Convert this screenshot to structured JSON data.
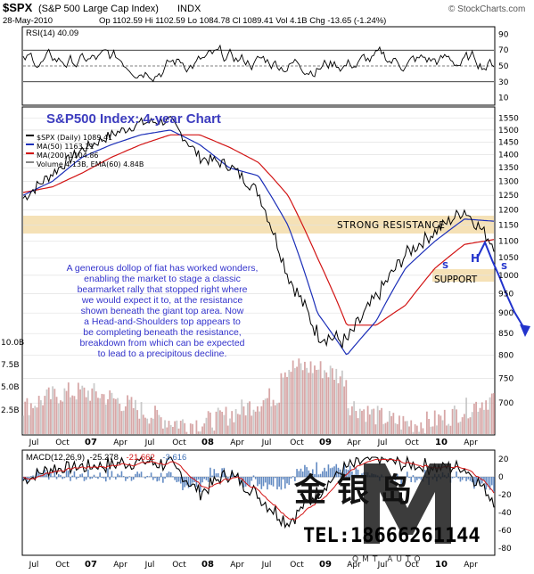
{
  "header": {
    "symbol": "$SPX",
    "name": "(S&P 500 Large Cap Index)",
    "exchange": "INDX",
    "date": "28-May-2010",
    "quote": "Op 1102.59  Hi 1102.59  Lo 1084.78  Cl 1089.41  Vol 4.1B  Chg -13.65 (-1.24%)",
    "watermark": "© StockCharts.com"
  },
  "rsi": {
    "label": "RSI(14) 40.09",
    "ticks": [
      90,
      70,
      50,
      30,
      10
    ],
    "overbought": 70,
    "oversold": 30,
    "mid": 50
  },
  "main": {
    "chart_title": "S&P500 Index: 4-year Chart",
    "legend": [
      {
        "text": "$SPX (Daily) 1089.41",
        "color": "#000000"
      },
      {
        "text": "MA(50) 1163.21",
        "color": "#1c2fb8"
      },
      {
        "text": "MA(200) 1104.86",
        "color": "#d21414"
      },
      {
        "text": "Volume 4.13B, EMA(60) 4.84B",
        "color": "#888888"
      }
    ],
    "price_ticks": [
      1550,
      1500,
      1450,
      1400,
      1350,
      1300,
      1250,
      1200,
      1150,
      1100,
      1050,
      1000,
      950,
      900,
      850,
      800,
      750,
      700
    ],
    "volume_ticks": [
      "10.0B",
      "7.5B",
      "5.0B",
      "2.5B"
    ],
    "resistance_label": "STRONG RESISTANCE",
    "support_label": "SUPPORT",
    "hs_labels": [
      "S",
      "H",
      "S"
    ],
    "annotation": "A generous dollop of fiat has worked wonders, enabling the market to stage a classic bearmarket rally that stopped right where we would expect it to, at the resistance shown beneath the giant top area. Now a Head-and-Shoulders top appears to be completing beneath the resistance, breakdown from which can be expected to lead to a precipitous decline.",
    "annotation_lines": [
      "A generous dollop of fiat has worked wonders,",
      "enabling the market to stage a classic",
      "bearmarket rally that stopped right where",
      "we would expect it to, at the resistance",
      "shown beneath the giant top area. Now",
      "a Head-and-Shoulders top appears to",
      "be completing beneath the resistance,",
      "breakdown from which can be expected",
      "to lead to a precipitous decline."
    ]
  },
  "macd": {
    "label": "MACD(12,26,9)",
    "v1": "-25.278",
    "v2": "-21.662",
    "v3": "-3.616",
    "ticks": [
      20,
      0,
      -20,
      -40,
      -60,
      -80
    ]
  },
  "xaxis": [
    "Jul",
    "Oct",
    "07",
    "Apr",
    "Jul",
    "Oct",
    "08",
    "Apr",
    "Jul",
    "Oct",
    "09",
    "Apr",
    "Jul",
    "Oct",
    "10",
    "Apr"
  ],
  "overlay": {
    "logo_text": "金银岛",
    "phone": "TEL:18666261144",
    "sub": "QMT AUTO"
  },
  "colors": {
    "price": "#000000",
    "ma50": "#1c2fb8",
    "ma200": "#d21414",
    "volume": "#c98a8a",
    "band": "#f3d9a4",
    "annotation": "#3333cc",
    "title": "#3d3dbf",
    "macd_hist": "#3c6eb4"
  },
  "chart_data": {
    "type": "line",
    "title": "S&P500 Index: 4-year Chart",
    "x": [
      "2006-07",
      "2006-10",
      "2007-01",
      "2007-04",
      "2007-07",
      "2007-10",
      "2008-01",
      "2008-04",
      "2008-07",
      "2008-10",
      "2009-01",
      "2009-04",
      "2009-07",
      "2009-10",
      "2010-01",
      "2010-04",
      "2010-05-28"
    ],
    "series": [
      {
        "name": "$SPX (Daily) 1089.41",
        "values": [
          1240,
          1330,
          1420,
          1480,
          1530,
          1540,
          1390,
          1360,
          1260,
          1000,
          850,
          830,
          940,
          1060,
          1130,
          1200,
          1089
        ]
      },
      {
        "name": "MA(50) 1163.21",
        "values": [
          1250,
          1300,
          1390,
          1440,
          1480,
          1500,
          1440,
          1350,
          1320,
          1150,
          900,
          800,
          880,
          1020,
          1100,
          1170,
          1163
        ]
      },
      {
        "name": "MA(200) 1104.86",
        "values": [
          1260,
          1280,
          1330,
          1390,
          1440,
          1480,
          1480,
          1430,
          1370,
          1250,
          1050,
          870,
          870,
          920,
          1020,
          1090,
          1105
        ]
      }
    ],
    "xlabel": "",
    "ylabel": "",
    "ylim": [
      650,
      1580
    ]
  }
}
